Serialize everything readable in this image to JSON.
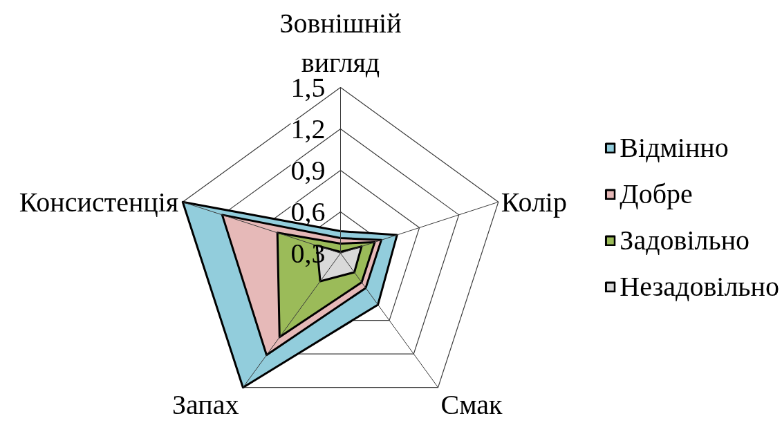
{
  "chart_data": {
    "type": "radar",
    "categories": [
      "Зовнішній вигляд",
      "Колір",
      "Смак",
      "Запах",
      "Консистенція"
    ],
    "ylim": [
      0.3,
      1.5
    ],
    "yticks": [
      {
        "value": 0.3,
        "label": "0,3"
      },
      {
        "value": 0.6,
        "label": "0,6"
      },
      {
        "value": 0.9,
        "label": "0,9"
      },
      {
        "value": 1.2,
        "label": "1,2"
      },
      {
        "value": 1.5,
        "label": "1,5"
      }
    ],
    "grid": true,
    "legend": "right",
    "series": [
      {
        "name": "Відмінно",
        "color": "#92cddc",
        "values": [
          0.46,
          0.73,
          0.76,
          1.5,
          1.5
        ]
      },
      {
        "name": "Добре",
        "color": "#e6b9b8",
        "values": [
          0.41,
          0.61,
          0.61,
          1.21,
          1.2
        ]
      },
      {
        "name": "Задовільно",
        "color": "#9bbb59",
        "values": [
          0.37,
          0.56,
          0.56,
          1.05,
          0.78
        ]
      },
      {
        "name": "Незадовільно",
        "color": "#d9d9d9",
        "values": [
          0.31,
          0.46,
          0.47,
          0.55,
          0.48
        ]
      }
    ]
  }
}
